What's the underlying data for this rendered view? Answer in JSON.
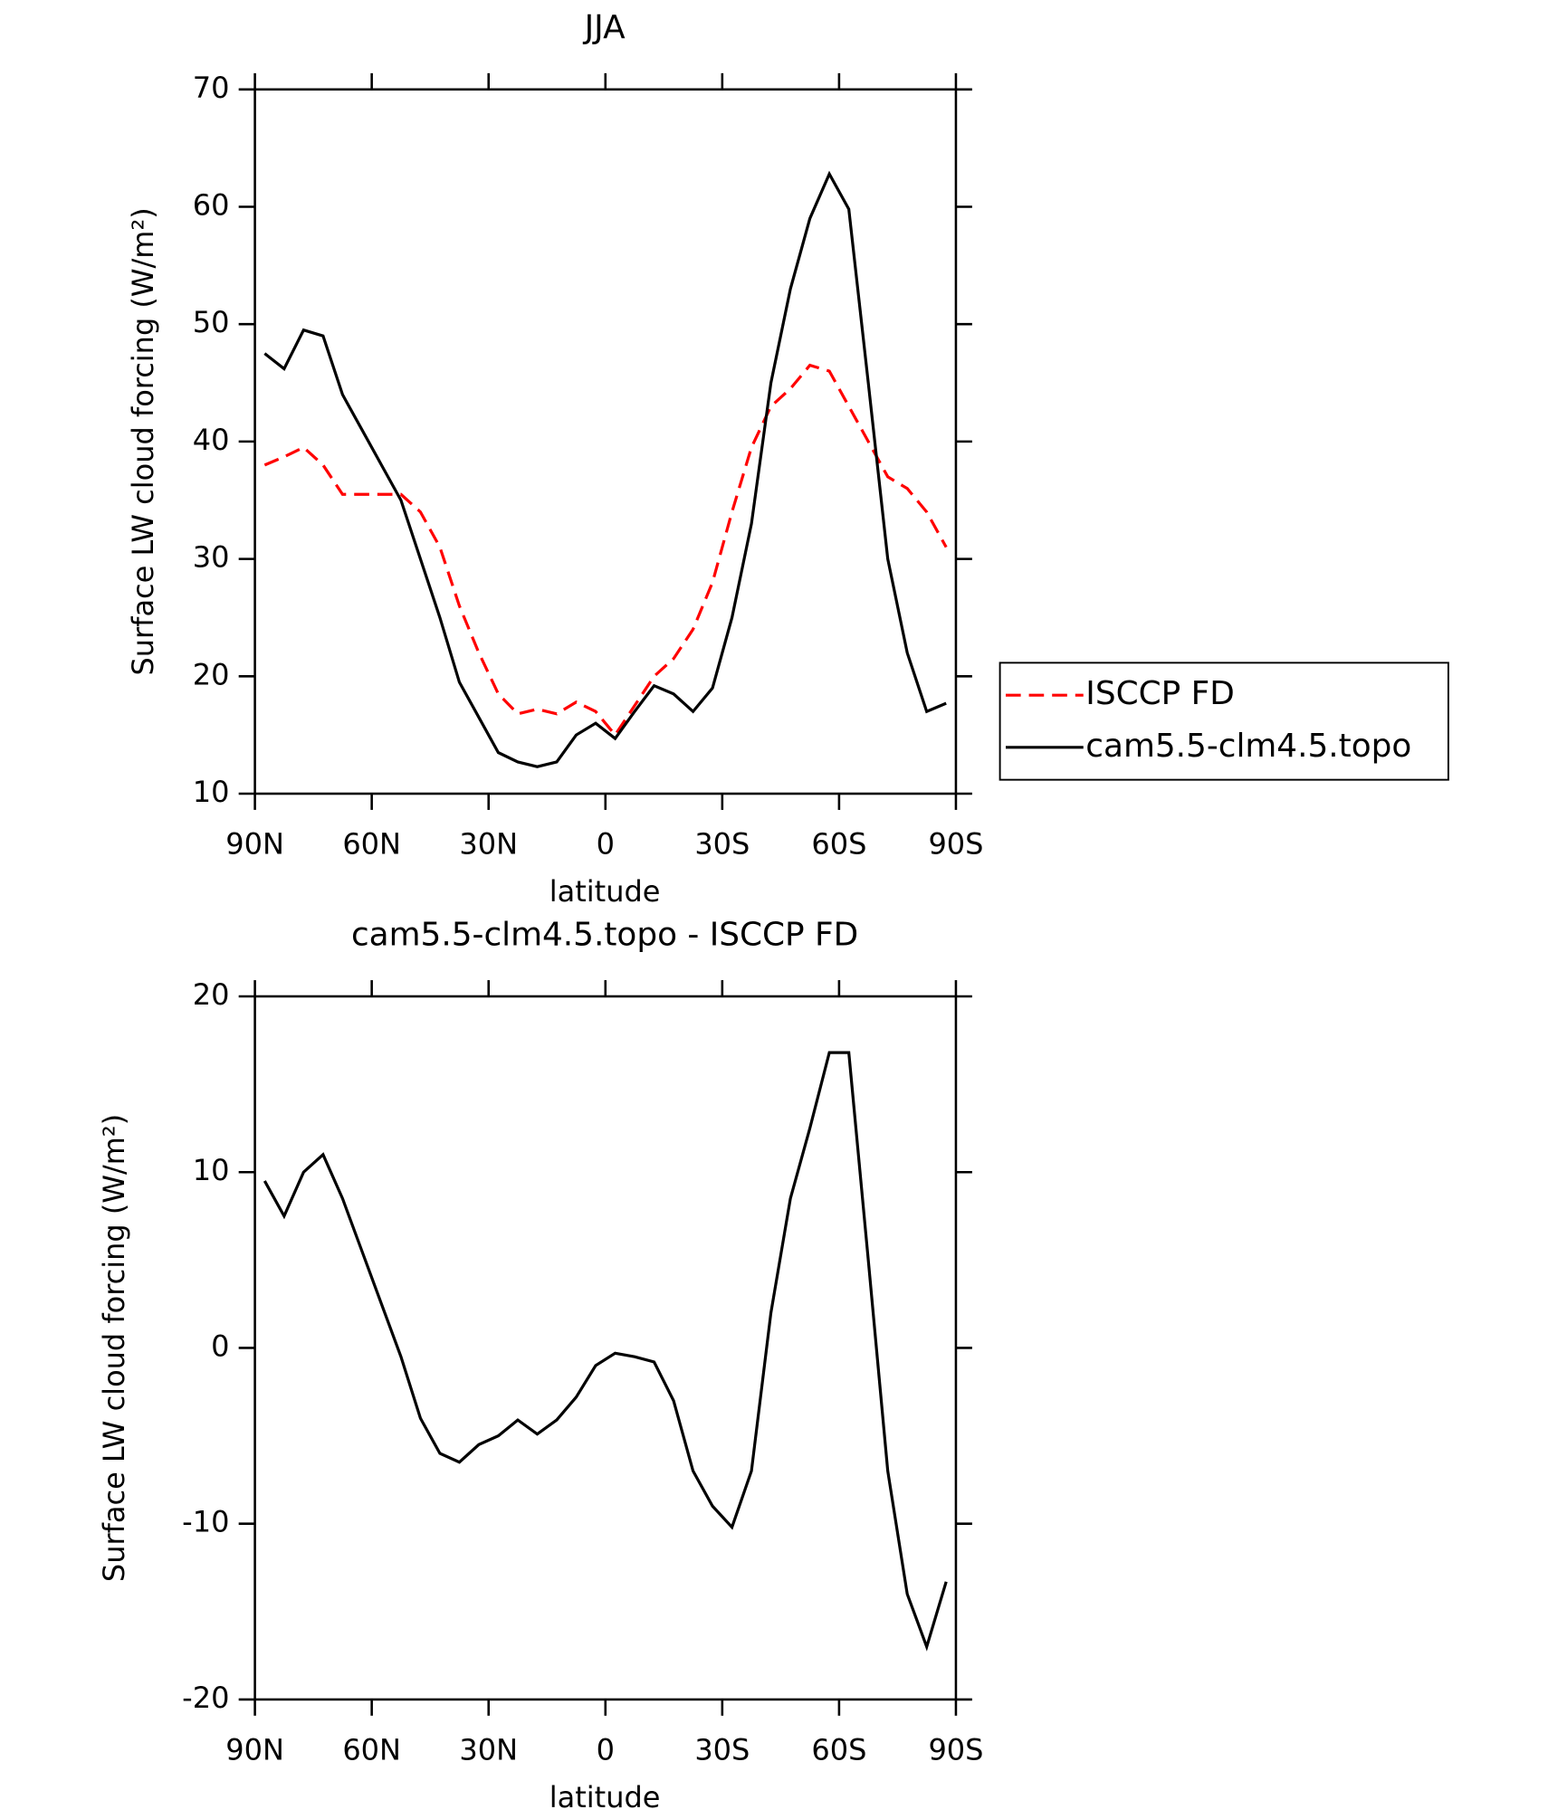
{
  "chart_data": [
    {
      "type": "line",
      "title": "JJA",
      "x_label": "latitude",
      "y_label": "Surface LW cloud forcing (W/m²)",
      "x": [
        87.5,
        82.5,
        77.5,
        72.5,
        67.5,
        62.5,
        57.5,
        52.5,
        47.5,
        42.5,
        37.5,
        32.5,
        27.5,
        22.5,
        17.5,
        12.5,
        7.5,
        2.5,
        -2.5,
        -7.5,
        -12.5,
        -17.5,
        -22.5,
        -27.5,
        -32.5,
        -37.5,
        -42.5,
        -47.5,
        -52.5,
        -57.5,
        -62.5,
        -67.5,
        -72.5,
        -77.5,
        -82.5,
        -87.5
      ],
      "series": [
        {
          "name": "ISCCP FD",
          "color": "#ff0000",
          "dashed": true,
          "values": [
            38,
            38.7,
            39.5,
            38,
            35.5,
            35.5,
            35.5,
            35.5,
            34,
            31,
            26,
            22,
            18.5,
            16.8,
            17.2,
            16.8,
            17.8,
            17,
            15,
            17.5,
            20,
            21.5,
            24,
            28,
            34,
            39.5,
            43,
            44.5,
            46.5,
            46,
            43,
            40,
            37,
            36,
            34,
            31
          ]
        },
        {
          "name": "cam5.5-clm4.5.topo",
          "color": "#000000",
          "dashed": false,
          "values": [
            47.5,
            46.2,
            49.5,
            49,
            44,
            41,
            38,
            35,
            30,
            25,
            19.5,
            16.5,
            13.5,
            12.7,
            12.3,
            12.7,
            15,
            16,
            14.7,
            17,
            19.2,
            18.5,
            17,
            19,
            25,
            33,
            45,
            53,
            59,
            62.8,
            59.8,
            45,
            30,
            22,
            17,
            17.7
          ]
        }
      ],
      "xlim": [
        90,
        -90
      ],
      "xticks": [
        {
          "value": 90,
          "label": "90N"
        },
        {
          "value": 60,
          "label": "60N"
        },
        {
          "value": 30,
          "label": "30N"
        },
        0,
        {
          "value": -30,
          "label": "30S"
        },
        {
          "value": -60,
          "label": "60S"
        },
        {
          "value": -90,
          "label": "90S"
        }
      ],
      "ylim": [
        10,
        70
      ],
      "yticks": [
        10,
        20,
        30,
        40,
        50,
        60,
        70
      ],
      "legend": "right"
    },
    {
      "type": "line",
      "title": "cam5.5-clm4.5.topo - ISCCP FD",
      "x_label": "latitude",
      "y_label": "Surface LW cloud forcing (W/m²)",
      "x": [
        87.5,
        82.5,
        77.5,
        72.5,
        67.5,
        62.5,
        57.5,
        52.5,
        47.5,
        42.5,
        37.5,
        32.5,
        27.5,
        22.5,
        17.5,
        12.5,
        7.5,
        2.5,
        -2.5,
        -7.5,
        -12.5,
        -17.5,
        -22.5,
        -27.5,
        -32.5,
        -37.5,
        -42.5,
        -47.5,
        -52.5,
        -57.5,
        -62.5,
        -67.5,
        -72.5,
        -77.5,
        -82.5,
        -87.5
      ],
      "color": "#000000",
      "values": [
        9.5,
        7.5,
        10,
        11,
        8.5,
        5.5,
        2.5,
        -0.5,
        -4,
        -6,
        -6.5,
        -5.5,
        -5,
        -4.1,
        -4.9,
        -4.1,
        -2.8,
        -1,
        -0.3,
        -0.5,
        -0.8,
        -3,
        -7,
        -9,
        -10.2,
        -7,
        2,
        8.5,
        12.5,
        16.8,
        16.8,
        5,
        -7,
        -14,
        -17,
        -13.3
      ],
      "xlim": [
        90,
        -90
      ],
      "xticks": [
        {
          "value": 90,
          "label": "90N"
        },
        {
          "value": 60,
          "label": "60N"
        },
        {
          "value": 30,
          "label": "30N"
        },
        0,
        {
          "value": -30,
          "label": "30S"
        },
        {
          "value": -60,
          "label": "60S"
        },
        {
          "value": -90,
          "label": "90S"
        }
      ],
      "ylim": [
        -20,
        20
      ],
      "yticks": [
        -20,
        -10,
        0,
        10,
        20
      ]
    }
  ]
}
